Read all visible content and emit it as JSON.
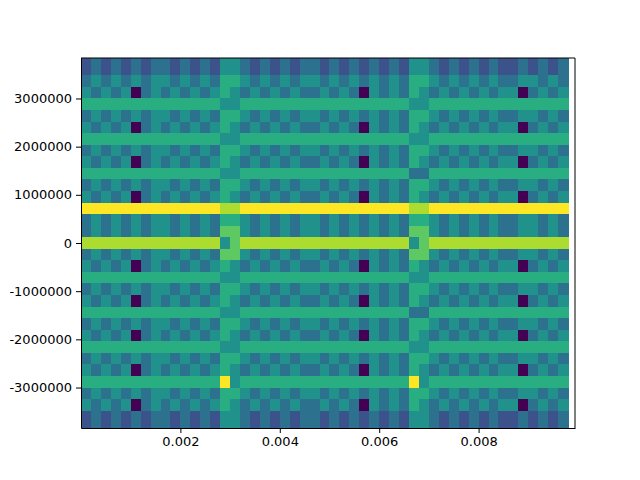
{
  "chart_data": {
    "type": "heatmap",
    "x": [
      0.0001,
      0.0003,
      0.0005,
      0.0007,
      0.0009,
      0.0011,
      0.0013,
      0.0015,
      0.0017,
      0.0019,
      0.0021,
      0.0023,
      0.0025,
      0.0027,
      0.0029,
      0.0031,
      0.0033,
      0.0035,
      0.0037,
      0.0039,
      0.0041,
      0.0043,
      0.0045,
      0.0047,
      0.0049,
      0.0051,
      0.0053,
      0.0055,
      0.0057,
      0.0059,
      0.0061,
      0.0063,
      0.0065,
      0.0067,
      0.0069,
      0.0071,
      0.0073,
      0.0075,
      0.0077,
      0.0079,
      0.0081,
      0.0083,
      0.0085,
      0.0087,
      0.0089,
      0.0091,
      0.0093,
      0.0095,
      0.0097
    ],
    "y": [
      3840000,
      3600000,
      3360000,
      3120000,
      2880000,
      2640000,
      2400000,
      2160000,
      1920000,
      1680000,
      1440000,
      1200000,
      960000,
      720000,
      480000,
      240000,
      0,
      -240000,
      -480000,
      -720000,
      -960000,
      -1200000,
      -1440000,
      -1680000,
      -1920000,
      -2160000,
      -2400000,
      -2640000,
      -2880000,
      -3120000,
      -3360000,
      -3600000,
      -3840000
    ],
    "cells": [
      [
        4,
        5,
        4,
        5,
        4,
        5,
        4,
        5,
        5,
        4,
        5,
        4,
        5,
        4,
        6,
        6,
        5,
        4,
        5,
        4,
        5,
        4,
        5,
        5,
        4,
        5,
        4,
        5,
        4,
        5,
        4,
        5,
        4,
        6,
        6,
        5,
        4,
        5,
        4,
        5,
        4,
        5,
        4,
        4,
        5,
        4,
        5,
        4,
        5
      ],
      [
        4,
        5,
        4,
        5,
        4,
        5,
        4,
        5,
        5,
        4,
        5,
        4,
        5,
        4,
        6,
        6,
        5,
        4,
        5,
        4,
        5,
        4,
        5,
        5,
        4,
        5,
        4,
        5,
        4,
        5,
        4,
        5,
        4,
        6,
        6,
        5,
        4,
        5,
        4,
        5,
        4,
        5,
        4,
        4,
        5,
        4,
        5,
        4,
        5
      ],
      [
        5,
        6,
        5,
        6,
        5,
        6,
        5,
        6,
        6,
        5,
        6,
        5,
        6,
        5,
        7,
        7,
        6,
        5,
        6,
        5,
        6,
        5,
        6,
        6,
        5,
        6,
        5,
        6,
        5,
        6,
        5,
        6,
        5,
        7,
        7,
        6,
        5,
        6,
        5,
        6,
        5,
        6,
        5,
        5,
        6,
        6,
        5,
        6,
        5
      ],
      [
        6,
        5,
        6,
        5,
        6,
        2,
        5,
        6,
        5,
        6,
        5,
        6,
        5,
        6,
        7,
        6,
        5,
        6,
        5,
        6,
        5,
        6,
        5,
        5,
        6,
        5,
        6,
        5,
        2,
        6,
        5,
        6,
        5,
        7,
        6,
        5,
        6,
        5,
        6,
        5,
        6,
        5,
        6,
        6,
        2,
        5,
        6,
        5,
        6
      ],
      [
        7,
        7,
        7,
        7,
        7,
        7,
        7,
        7,
        7,
        7,
        7,
        7,
        7,
        7,
        6,
        6,
        7,
        7,
        7,
        7,
        7,
        7,
        7,
        7,
        7,
        7,
        7,
        7,
        7,
        7,
        7,
        7,
        7,
        6,
        6,
        7,
        7,
        7,
        7,
        7,
        7,
        7,
        7,
        7,
        7,
        7,
        7,
        7,
        7
      ],
      [
        5,
        6,
        5,
        6,
        5,
        6,
        5,
        6,
        6,
        5,
        6,
        5,
        6,
        5,
        7,
        7,
        6,
        5,
        6,
        5,
        6,
        5,
        6,
        6,
        5,
        6,
        5,
        6,
        5,
        6,
        5,
        6,
        5,
        7,
        7,
        6,
        5,
        6,
        5,
        6,
        5,
        6,
        5,
        5,
        6,
        6,
        5,
        6,
        5
      ],
      [
        6,
        5,
        6,
        5,
        6,
        2,
        5,
        6,
        5,
        6,
        5,
        6,
        5,
        6,
        7,
        6,
        5,
        6,
        5,
        6,
        5,
        6,
        5,
        5,
        6,
        5,
        6,
        5,
        2,
        6,
        5,
        6,
        5,
        7,
        6,
        5,
        6,
        5,
        6,
        5,
        6,
        5,
        6,
        6,
        2,
        5,
        6,
        5,
        6
      ],
      [
        7,
        7,
        7,
        7,
        7,
        7,
        7,
        7,
        7,
        7,
        7,
        7,
        7,
        7,
        6,
        6,
        7,
        7,
        7,
        7,
        7,
        7,
        7,
        7,
        7,
        7,
        7,
        7,
        7,
        7,
        7,
        7,
        7,
        6,
        6,
        7,
        7,
        7,
        7,
        7,
        7,
        7,
        7,
        7,
        7,
        7,
        7,
        7,
        7
      ],
      [
        5,
        6,
        5,
        6,
        5,
        6,
        5,
        6,
        6,
        5,
        6,
        5,
        6,
        5,
        7,
        7,
        6,
        5,
        6,
        5,
        6,
        5,
        6,
        6,
        5,
        6,
        5,
        6,
        5,
        6,
        5,
        6,
        5,
        7,
        7,
        6,
        5,
        6,
        5,
        6,
        5,
        6,
        5,
        5,
        6,
        6,
        5,
        6,
        5
      ],
      [
        6,
        5,
        6,
        5,
        6,
        2,
        5,
        6,
        5,
        6,
        5,
        6,
        5,
        6,
        7,
        6,
        5,
        6,
        5,
        6,
        5,
        6,
        5,
        5,
        6,
        5,
        6,
        5,
        2,
        6,
        5,
        6,
        5,
        7,
        6,
        5,
        6,
        5,
        6,
        5,
        6,
        5,
        6,
        6,
        2,
        5,
        6,
        5,
        6
      ],
      [
        7,
        7,
        7,
        7,
        7,
        7,
        7,
        7,
        7,
        7,
        7,
        7,
        7,
        7,
        6,
        6,
        7,
        7,
        7,
        7,
        7,
        7,
        7,
        7,
        7,
        7,
        7,
        7,
        7,
        7,
        7,
        7,
        7,
        5,
        5,
        7,
        7,
        7,
        7,
        7,
        7,
        7,
        7,
        7,
        7,
        7,
        7,
        7,
        7
      ],
      [
        5,
        6,
        5,
        6,
        5,
        6,
        5,
        6,
        6,
        5,
        6,
        5,
        6,
        5,
        7,
        7,
        6,
        5,
        6,
        5,
        6,
        5,
        6,
        6,
        5,
        6,
        5,
        6,
        5,
        6,
        5,
        6,
        5,
        7,
        7,
        6,
        5,
        6,
        5,
        6,
        5,
        6,
        5,
        5,
        6,
        6,
        5,
        6,
        5
      ],
      [
        6,
        5,
        6,
        5,
        6,
        2,
        5,
        6,
        5,
        6,
        5,
        6,
        5,
        6,
        7,
        6,
        5,
        6,
        5,
        6,
        5,
        6,
        5,
        5,
        6,
        5,
        6,
        5,
        2,
        6,
        5,
        6,
        5,
        7,
        6,
        5,
        6,
        5,
        6,
        5,
        6,
        5,
        6,
        6,
        2,
        5,
        6,
        5,
        6
      ],
      [
        10,
        10,
        10,
        10,
        10,
        10,
        10,
        10,
        10,
        10,
        10,
        10,
        10,
        10,
        9,
        9,
        10,
        10,
        10,
        10,
        10,
        10,
        10,
        10,
        10,
        10,
        10,
        10,
        10,
        10,
        10,
        10,
        10,
        9,
        9,
        10,
        10,
        10,
        10,
        10,
        10,
        10,
        10,
        10,
        10,
        10,
        10,
        10,
        10
      ],
      [
        5,
        6,
        5,
        6,
        5,
        6,
        5,
        6,
        6,
        5,
        6,
        5,
        6,
        5,
        7,
        7,
        6,
        5,
        6,
        5,
        6,
        5,
        6,
        6,
        5,
        6,
        5,
        6,
        5,
        6,
        5,
        6,
        5,
        7,
        7,
        6,
        5,
        6,
        5,
        6,
        5,
        6,
        5,
        5,
        6,
        6,
        5,
        6,
        5
      ],
      [
        5,
        6,
        5,
        6,
        5,
        6,
        5,
        6,
        6,
        5,
        6,
        5,
        6,
        5,
        8,
        8,
        6,
        5,
        6,
        5,
        6,
        5,
        6,
        6,
        5,
        6,
        5,
        6,
        5,
        6,
        5,
        6,
        5,
        8,
        8,
        6,
        5,
        6,
        5,
        6,
        5,
        6,
        5,
        5,
        6,
        6,
        5,
        6,
        5
      ],
      [
        9,
        9,
        9,
        9,
        9,
        9,
        9,
        9,
        9,
        9,
        9,
        9,
        9,
        9,
        6,
        8,
        9,
        9,
        9,
        9,
        9,
        9,
        9,
        9,
        9,
        9,
        9,
        9,
        9,
        9,
        9,
        9,
        9,
        6,
        8,
        9,
        9,
        9,
        9,
        9,
        9,
        9,
        9,
        9,
        9,
        9,
        9,
        9,
        9
      ],
      [
        5,
        6,
        5,
        6,
        5,
        6,
        5,
        6,
        6,
        5,
        6,
        5,
        6,
        5,
        8,
        8,
        6,
        5,
        6,
        5,
        6,
        5,
        6,
        6,
        5,
        6,
        5,
        6,
        5,
        6,
        5,
        6,
        5,
        8,
        8,
        6,
        5,
        6,
        5,
        6,
        5,
        6,
        5,
        5,
        6,
        6,
        5,
        6,
        5
      ],
      [
        6,
        5,
        6,
        5,
        6,
        2,
        5,
        6,
        5,
        6,
        5,
        6,
        5,
        6,
        7,
        6,
        5,
        6,
        5,
        6,
        5,
        6,
        5,
        5,
        6,
        5,
        6,
        5,
        2,
        6,
        5,
        6,
        5,
        7,
        6,
        5,
        6,
        5,
        6,
        5,
        6,
        5,
        6,
        6,
        2,
        5,
        6,
        5,
        6
      ],
      [
        7,
        7,
        7,
        7,
        7,
        7,
        7,
        7,
        7,
        7,
        7,
        7,
        7,
        7,
        6,
        6,
        7,
        7,
        7,
        7,
        7,
        7,
        7,
        7,
        7,
        7,
        7,
        7,
        7,
        7,
        7,
        7,
        7,
        6,
        6,
        7,
        7,
        7,
        7,
        7,
        7,
        7,
        7,
        7,
        7,
        7,
        7,
        7,
        7
      ],
      [
        5,
        6,
        5,
        6,
        5,
        6,
        5,
        6,
        6,
        5,
        6,
        5,
        6,
        5,
        7,
        7,
        6,
        5,
        6,
        5,
        6,
        5,
        6,
        6,
        5,
        6,
        5,
        6,
        5,
        6,
        5,
        6,
        5,
        7,
        7,
        6,
        5,
        6,
        5,
        6,
        5,
        6,
        5,
        5,
        6,
        6,
        5,
        6,
        5
      ],
      [
        6,
        5,
        6,
        5,
        6,
        2,
        5,
        6,
        5,
        6,
        5,
        6,
        5,
        6,
        7,
        6,
        5,
        6,
        5,
        6,
        5,
        6,
        5,
        5,
        6,
        5,
        6,
        5,
        2,
        6,
        5,
        6,
        5,
        7,
        6,
        5,
        6,
        5,
        6,
        5,
        6,
        5,
        6,
        6,
        2,
        5,
        6,
        5,
        6
      ],
      [
        7,
        7,
        7,
        7,
        7,
        7,
        7,
        7,
        7,
        7,
        7,
        7,
        7,
        7,
        6,
        6,
        7,
        7,
        7,
        7,
        7,
        7,
        7,
        7,
        7,
        7,
        7,
        7,
        7,
        7,
        7,
        7,
        7,
        5,
        5,
        7,
        7,
        7,
        7,
        7,
        7,
        7,
        7,
        7,
        7,
        7,
        7,
        7,
        7
      ],
      [
        5,
        6,
        5,
        6,
        5,
        6,
        5,
        6,
        6,
        5,
        6,
        5,
        6,
        5,
        7,
        7,
        6,
        5,
        6,
        5,
        6,
        5,
        6,
        6,
        5,
        6,
        5,
        6,
        5,
        6,
        5,
        6,
        5,
        7,
        7,
        6,
        5,
        6,
        5,
        6,
        5,
        6,
        5,
        5,
        6,
        6,
        5,
        6,
        5
      ],
      [
        6,
        5,
        6,
        5,
        6,
        2,
        5,
        6,
        5,
        6,
        5,
        6,
        5,
        6,
        7,
        6,
        5,
        6,
        5,
        6,
        5,
        6,
        5,
        5,
        6,
        5,
        6,
        5,
        2,
        6,
        5,
        6,
        5,
        7,
        6,
        5,
        6,
        5,
        6,
        5,
        6,
        5,
        6,
        6,
        2,
        5,
        6,
        5,
        6
      ],
      [
        7,
        7,
        7,
        7,
        7,
        7,
        7,
        7,
        7,
        7,
        7,
        7,
        7,
        7,
        6,
        6,
        7,
        7,
        7,
        7,
        7,
        7,
        7,
        7,
        7,
        7,
        7,
        7,
        7,
        7,
        7,
        7,
        7,
        6,
        6,
        7,
        7,
        7,
        7,
        7,
        7,
        7,
        7,
        7,
        7,
        7,
        7,
        7,
        7
      ],
      [
        5,
        6,
        5,
        6,
        5,
        6,
        5,
        6,
        6,
        5,
        6,
        5,
        6,
        5,
        7,
        7,
        6,
        5,
        6,
        5,
        6,
        5,
        6,
        6,
        5,
        6,
        5,
        6,
        5,
        6,
        5,
        6,
        5,
        7,
        7,
        6,
        5,
        6,
        5,
        6,
        5,
        6,
        5,
        5,
        6,
        6,
        5,
        6,
        5
      ],
      [
        6,
        5,
        6,
        5,
        6,
        2,
        5,
        6,
        5,
        6,
        5,
        6,
        5,
        6,
        7,
        6,
        5,
        6,
        5,
        6,
        5,
        6,
        5,
        5,
        6,
        5,
        6,
        5,
        2,
        6,
        5,
        6,
        5,
        7,
        6,
        5,
        6,
        5,
        6,
        5,
        6,
        5,
        6,
        6,
        2,
        5,
        6,
        5,
        6
      ],
      [
        7,
        7,
        7,
        7,
        7,
        7,
        7,
        7,
        7,
        7,
        7,
        7,
        7,
        7,
        10,
        6,
        7,
        7,
        7,
        7,
        7,
        7,
        7,
        7,
        7,
        7,
        7,
        7,
        7,
        7,
        7,
        7,
        7,
        10,
        6,
        7,
        7,
        7,
        7,
        7,
        7,
        7,
        7,
        7,
        7,
        7,
        7,
        7,
        7
      ],
      [
        5,
        6,
        5,
        6,
        5,
        6,
        5,
        6,
        6,
        5,
        6,
        5,
        6,
        5,
        7,
        7,
        6,
        5,
        6,
        5,
        6,
        5,
        6,
        6,
        5,
        6,
        5,
        6,
        5,
        6,
        5,
        6,
        5,
        7,
        7,
        6,
        5,
        6,
        5,
        6,
        5,
        6,
        5,
        5,
        6,
        6,
        5,
        6,
        5
      ],
      [
        6,
        5,
        6,
        5,
        6,
        2,
        5,
        6,
        5,
        6,
        5,
        6,
        5,
        6,
        7,
        6,
        5,
        6,
        5,
        6,
        5,
        6,
        5,
        5,
        6,
        5,
        6,
        5,
        2,
        6,
        5,
        6,
        5,
        7,
        6,
        5,
        6,
        5,
        6,
        5,
        6,
        5,
        6,
        6,
        2,
        5,
        6,
        5,
        6
      ],
      [
        4,
        5,
        4,
        5,
        4,
        5,
        4,
        5,
        5,
        4,
        5,
        4,
        5,
        4,
        6,
        6,
        5,
        4,
        5,
        4,
        5,
        4,
        5,
        5,
        4,
        5,
        4,
        5,
        4,
        5,
        4,
        5,
        4,
        6,
        6,
        5,
        4,
        5,
        4,
        5,
        4,
        5,
        4,
        4,
        5,
        4,
        5,
        4,
        5
      ],
      [
        4,
        5,
        4,
        5,
        4,
        5,
        4,
        5,
        5,
        4,
        5,
        4,
        5,
        4,
        6,
        6,
        5,
        4,
        5,
        4,
        5,
        4,
        5,
        5,
        4,
        5,
        4,
        5,
        4,
        5,
        4,
        5,
        4,
        6,
        6,
        5,
        4,
        5,
        4,
        5,
        4,
        5,
        4,
        4,
        5,
        4,
        5,
        4,
        5
      ]
    ],
    "xlim": [
      0,
      0.00994
    ],
    "ylim": [
      -3840000,
      3840000
    ],
    "xticks": [
      0.002,
      0.004,
      0.006,
      0.008
    ],
    "yticks": [
      -3000000,
      -2000000,
      -1000000,
      0,
      1000000,
      2000000,
      3000000
    ]
  }
}
